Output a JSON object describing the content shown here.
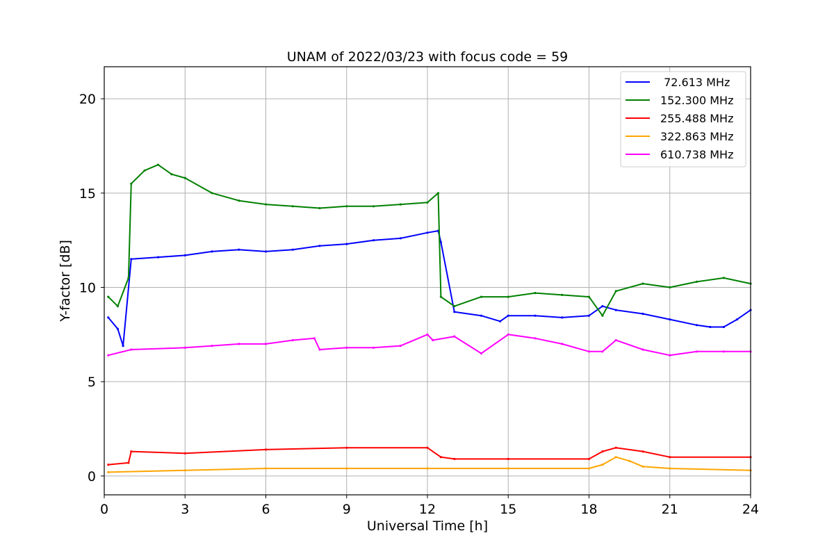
{
  "chart_data": {
    "type": "line",
    "title": "UNAM of 2022/03/23 with focus code = 59",
    "xlabel": "Universal Time [h]",
    "ylabel": "Y-factor [dB]",
    "xlim": [
      0,
      24
    ],
    "ylim": [
      -1,
      21.7
    ],
    "xticks": [
      0,
      3,
      6,
      9,
      12,
      15,
      18,
      21,
      24
    ],
    "yticks": [
      0,
      5,
      10,
      15,
      20
    ],
    "grid": true,
    "legend_position": "top-right",
    "series": [
      {
        "name": " 72.613 MHz",
        "color": "#0000ff",
        "x": [
          0.15,
          0.5,
          0.7,
          1,
          2,
          3,
          4,
          5,
          6,
          7,
          8,
          9,
          10,
          11,
          12,
          12.4,
          12.5,
          13,
          14,
          14.7,
          15,
          16,
          17,
          18,
          18.5,
          19,
          20,
          21,
          22,
          22.5,
          23,
          23.5,
          24
        ],
        "y": [
          8.4,
          7.8,
          6.9,
          11.5,
          11.6,
          11.7,
          11.9,
          12.0,
          11.9,
          12.0,
          12.2,
          12.3,
          12.5,
          12.6,
          12.9,
          13.0,
          12.4,
          8.7,
          8.5,
          8.2,
          8.5,
          8.5,
          8.4,
          8.5,
          9.0,
          8.8,
          8.6,
          8.3,
          8.0,
          7.9,
          7.9,
          8.3,
          8.8
        ]
      },
      {
        "name": "152.300 MHz",
        "color": "#008000",
        "x": [
          0.15,
          0.5,
          0.9,
          1,
          1.5,
          2,
          2.5,
          3,
          4,
          5,
          6,
          7,
          8,
          9,
          10,
          11,
          12,
          12.4,
          12.5,
          13,
          14,
          15,
          16,
          17,
          18,
          18.5,
          19,
          20,
          21,
          22,
          23,
          24
        ],
        "y": [
          9.5,
          9.0,
          10.5,
          15.5,
          16.2,
          16.5,
          16.0,
          15.8,
          15.0,
          14.6,
          14.4,
          14.3,
          14.2,
          14.3,
          14.3,
          14.4,
          14.5,
          15.0,
          9.5,
          9.0,
          9.5,
          9.5,
          9.7,
          9.6,
          9.5,
          8.5,
          9.8,
          10.2,
          10.0,
          10.3,
          10.5,
          10.2
        ]
      },
      {
        "name": "255.488 MHz",
        "color": "#ff0000",
        "x": [
          0.15,
          0.9,
          1,
          3,
          6,
          9,
          12,
          12.5,
          13,
          15,
          18,
          18.5,
          19,
          20,
          21,
          24
        ],
        "y": [
          0.6,
          0.7,
          1.3,
          1.2,
          1.4,
          1.5,
          1.5,
          1.0,
          0.9,
          0.9,
          0.9,
          1.3,
          1.5,
          1.3,
          1.0,
          1.0
        ]
      },
      {
        "name": "322.863 MHz",
        "color": "#ffa500",
        "x": [
          0.15,
          3,
          6,
          9,
          12,
          15,
          18,
          18.5,
          19,
          19.5,
          20,
          21,
          24
        ],
        "y": [
          0.2,
          0.3,
          0.4,
          0.4,
          0.4,
          0.4,
          0.4,
          0.6,
          1.0,
          0.8,
          0.5,
          0.4,
          0.3
        ]
      },
      {
        "name": "610.738 MHz",
        "color": "#ff00ff",
        "x": [
          0.15,
          1,
          3,
          4,
          5,
          6,
          7,
          7.8,
          8,
          9,
          10,
          11,
          12,
          12.2,
          13,
          14,
          15,
          16,
          17,
          18,
          18.5,
          19,
          20,
          21,
          22,
          23,
          24
        ],
        "y": [
          6.4,
          6.7,
          6.8,
          6.9,
          7.0,
          7.0,
          7.2,
          7.3,
          6.7,
          6.8,
          6.8,
          6.9,
          7.5,
          7.2,
          7.4,
          6.5,
          7.5,
          7.3,
          7.0,
          6.6,
          6.6,
          7.2,
          6.7,
          6.4,
          6.6,
          6.6,
          6.6
        ]
      }
    ]
  }
}
